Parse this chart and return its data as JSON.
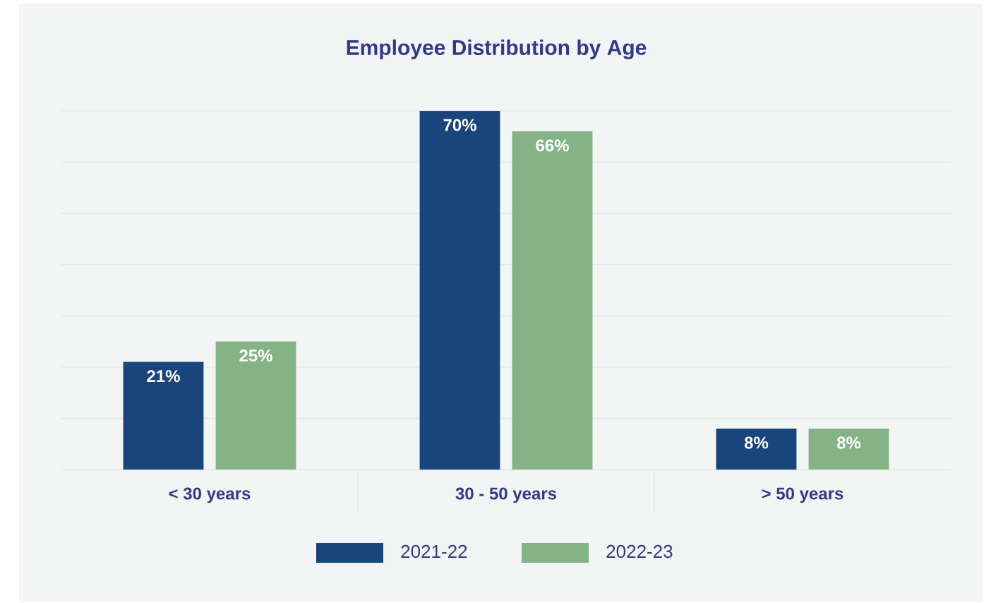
{
  "chart_data": {
    "type": "bar",
    "title": "Employee Distribution by Age",
    "categories": [
      "< 30 years",
      "30 - 50 years",
      "> 50 years"
    ],
    "series": [
      {
        "name": "2021-22",
        "color": "#17457c",
        "values": [
          21,
          70,
          8
        ],
        "value_labels": [
          "21%",
          "70%",
          "8%"
        ]
      },
      {
        "name": "2022-23",
        "color": "#84b386",
        "values": [
          25,
          66,
          8
        ],
        "value_labels": [
          "25%",
          "66%",
          "8%"
        ]
      }
    ],
    "ylim": [
      0,
      70
    ],
    "yticks": [
      {
        "value": 0,
        "label": null
      },
      {
        "value": 10,
        "label": null
      },
      {
        "value": 20,
        "label": null
      },
      {
        "value": 30,
        "label": null
      },
      {
        "value": 40,
        "label": null
      },
      {
        "value": 50,
        "label": null
      },
      {
        "value": 60,
        "label": null
      },
      {
        "value": 70,
        "label": null
      }
    ],
    "tick_labels": "x",
    "grid": "y",
    "legend": "bottom"
  }
}
